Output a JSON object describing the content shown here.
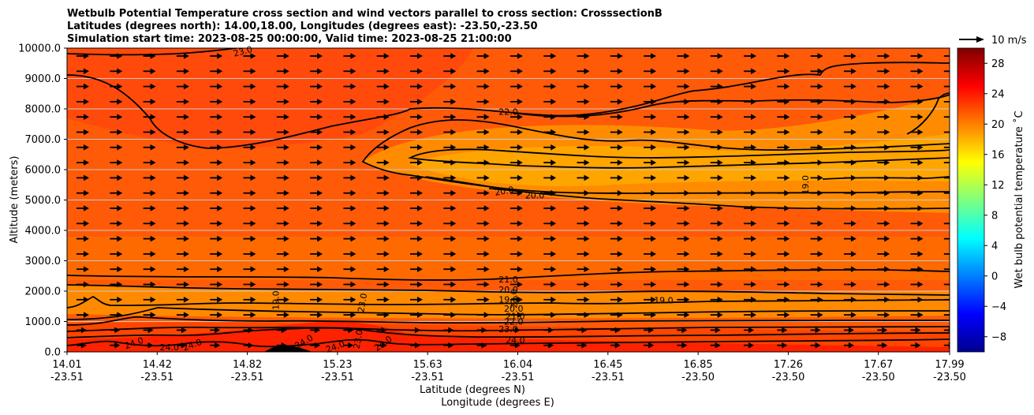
{
  "chart_data": {
    "type": "contour",
    "title_lines": [
      "Wetbulb Potential Temperature cross section and wind vectors parallel to cross section: CrosssectionB",
      "Latitudes (degrees north): 14.00,18.00, Longitudes (degrees east): -23.50,-23.50",
      "Simulation start time: 2023-08-25 00:00:00, Valid time: 2023-08-25 21:00:00"
    ],
    "ylabel": "Altitude (meters)",
    "xlabel_lat": "Latitude (degrees N)",
    "xlabel_lon": "Longitude (degrees E)",
    "ylim": [
      0,
      10000
    ],
    "y_ticks": [
      "0.0",
      "1000.0",
      "2000.0",
      "3000.0",
      "4000.0",
      "5000.0",
      "6000.0",
      "7000.0",
      "8000.0",
      "9000.0",
      "10000.0"
    ],
    "x_ticks_lat": [
      "14.01",
      "14.42",
      "14.82",
      "15.23",
      "15.63",
      "16.04",
      "16.45",
      "16.85",
      "17.26",
      "17.67",
      "17.99"
    ],
    "x_ticks_lon": [
      "-23.51",
      "-23.51",
      "-23.51",
      "-23.51",
      "-23.51",
      "-23.51",
      "-23.51",
      "-23.50",
      "-23.50",
      "-23.50",
      "-23.50"
    ],
    "colorbar": {
      "label": "Wet bulb potential temperature ˚C",
      "range": [
        -10,
        30
      ],
      "ticks": [
        "−8",
        "−4",
        "0",
        "4",
        "8",
        "12",
        "16",
        "20",
        "24",
        "28"
      ],
      "tick_values": [
        -8,
        -4,
        0,
        4,
        8,
        12,
        16,
        20,
        24,
        28
      ]
    },
    "wind_key": {
      "label": "10 m/s",
      "speed": 10
    },
    "contour_labels": [
      {
        "text": "23.0",
        "x": 0.2,
        "y": 9800,
        "angle": -15
      },
      {
        "text": "22.0",
        "x": 0.5,
        "y": 7800,
        "angle": 0
      },
      {
        "text": "20.0",
        "x": 0.496,
        "y": 5200,
        "angle": -10
      },
      {
        "text": "20.0",
        "x": 0.53,
        "y": 5050,
        "angle": 0
      },
      {
        "text": "19.0",
        "x": 0.84,
        "y": 5500,
        "angle": -90
      },
      {
        "text": "21.0",
        "x": 0.5,
        "y": 2280,
        "angle": 0
      },
      {
        "text": "20.0",
        "x": 0.5,
        "y": 1950,
        "angle": 0
      },
      {
        "text": "19.0",
        "x": 0.5,
        "y": 1620,
        "angle": 0
      },
      {
        "text": "20.0",
        "x": 0.506,
        "y": 1330,
        "angle": 0
      },
      {
        "text": "21.0",
        "x": 0.508,
        "y": 1080,
        "angle": 0
      },
      {
        "text": "22.0",
        "x": 0.506,
        "y": 890,
        "angle": 0
      },
      {
        "text": "23.0",
        "x": 0.5,
        "y": 650,
        "angle": 0
      },
      {
        "text": "24.0",
        "x": 0.508,
        "y": 280,
        "angle": 0
      },
      {
        "text": "19.0",
        "x": 0.676,
        "y": 1600,
        "angle": 0
      },
      {
        "text": "19.0",
        "x": 0.24,
        "y": 1700,
        "angle": -90
      },
      {
        "text": "24.0",
        "x": 0.077,
        "y": 200,
        "angle": -20
      },
      {
        "text": "24.0",
        "x": 0.116,
        "y": 50,
        "angle": 0
      },
      {
        "text": "24.0",
        "x": 0.143,
        "y": 140,
        "angle": -20
      },
      {
        "text": "24.0",
        "x": 0.27,
        "y": 250,
        "angle": -30
      },
      {
        "text": "24.0",
        "x": 0.305,
        "y": 80,
        "angle": -20
      },
      {
        "text": "23.0",
        "x": 0.333,
        "y": 400,
        "angle": -80
      },
      {
        "text": "24.0",
        "x": 0.36,
        "y": 200,
        "angle": -35
      },
      {
        "text": "23.0",
        "x": 0.338,
        "y": 1600,
        "angle": -80
      },
      {
        "text": "23.0",
        "x": 0.51,
        "y": 1750,
        "angle": -90
      }
    ]
  }
}
